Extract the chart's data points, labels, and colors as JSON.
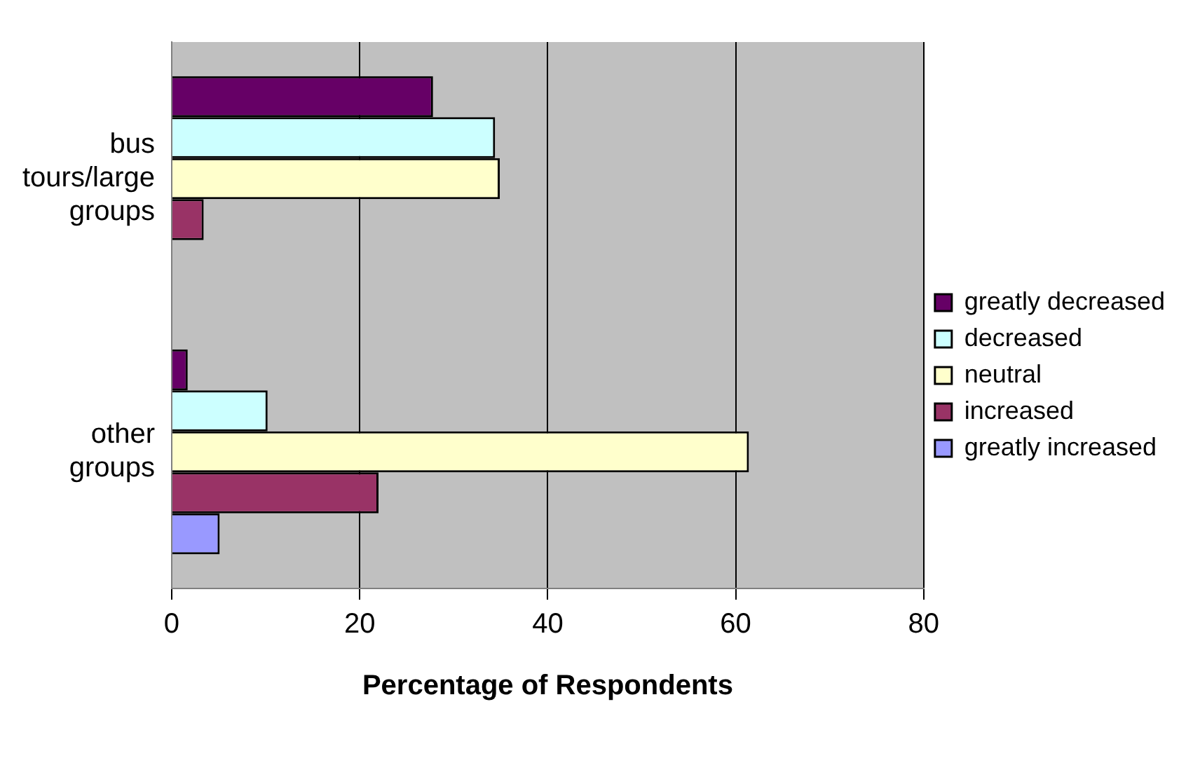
{
  "chart_data": {
    "type": "bar",
    "orientation": "horizontal",
    "xlabel": "Percentage of Respondents",
    "categories": [
      "bus tours/large groups",
      "other groups"
    ],
    "series": [
      {
        "name": "greatly decreased",
        "color": "#660066",
        "values": [
          27.8,
          1.7
        ]
      },
      {
        "name": "decreased",
        "color": "#ccffff",
        "values": [
          34.4,
          10.2
        ]
      },
      {
        "name": "neutral",
        "color": "#ffffcc",
        "values": [
          34.9,
          61.4
        ]
      },
      {
        "name": "increased",
        "color": "#993366",
        "values": [
          3.4,
          22.0
        ]
      },
      {
        "name": "greatly increased",
        "color": "#9999ff",
        "values": [
          0,
          5.1
        ]
      }
    ],
    "xlim": [
      0,
      80
    ],
    "xticks": [
      0,
      20,
      40,
      60,
      80
    ],
    "grid": "x",
    "legend": "right"
  }
}
